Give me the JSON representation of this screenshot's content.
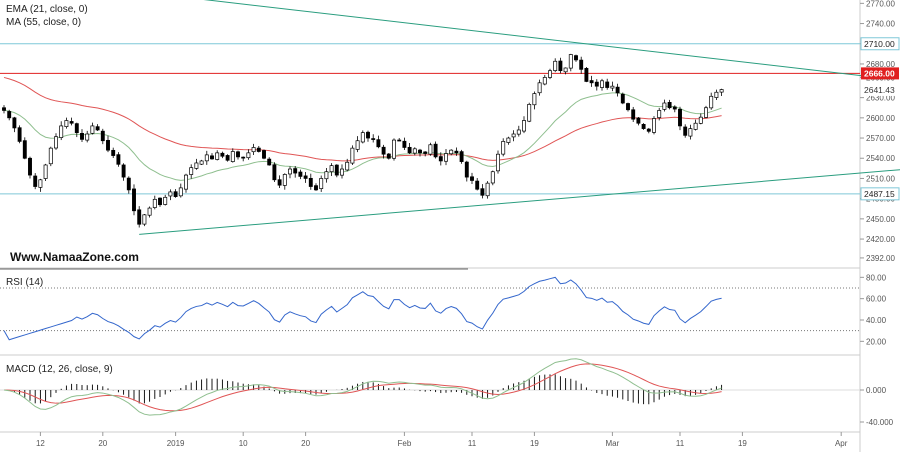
{
  "chart_data": [
    {
      "type": "candlestick",
      "title": "",
      "indicators": [
        "EMA (21, close, 0)",
        "MA (55, close, 0)"
      ],
      "watermark": "Www.NamaaZone.com",
      "ylim": [
        2380,
        2772
      ],
      "y_ticks": [
        2392,
        2420,
        2450,
        2480,
        2510,
        2540,
        2570,
        2600,
        2630,
        2660,
        2680,
        2710,
        2740,
        2770
      ],
      "y_tick_labels": [
        "2392.00",
        "2420.00",
        "2450.00",
        "2480.00",
        "2510.00",
        "2540.00",
        "2570.00",
        "2600.00",
        "2630.00",
        "2660.00",
        "2680.00",
        "2710.00",
        "2740.00",
        "2770.00"
      ],
      "tagged_levels": [
        {
          "value": 2710,
          "label": "2710.00",
          "color": "#7fc8d8",
          "style": "boxed"
        },
        {
          "value": 2666,
          "label": "2666.00",
          "color": "#e02020",
          "style": "filled"
        },
        {
          "value": 2641.43,
          "label": "2641.43",
          "color": "#333333",
          "style": "plain"
        },
        {
          "value": 2487.15,
          "label": "2487.15",
          "color": "#7fc8d8",
          "style": "boxed"
        }
      ],
      "trendlines": [
        {
          "name": "upper",
          "color": "#2a9d7f",
          "from": {
            "bar": 28,
            "y": 2785
          },
          "to": {
            "bar": 170,
            "y": 2658
          }
        },
        {
          "name": "lower",
          "color": "#2a9d7f",
          "from": {
            "bar": 26,
            "y": 2427
          },
          "to": {
            "bar": 183,
            "y": 2530
          }
        }
      ],
      "series_colors": {
        "ema": "#8fbf8f",
        "ma": "#e05555",
        "candle_up": "#ffffff",
        "candle_down": "#000000"
      },
      "closes": [
        2611,
        2600,
        2585,
        2565,
        2540,
        2515,
        2498,
        2508,
        2530,
        2555,
        2572,
        2588,
        2596,
        2592,
        2578,
        2568,
        2576,
        2588,
        2582,
        2566,
        2552,
        2544,
        2531,
        2512,
        2493,
        2462,
        2442,
        2456,
        2466,
        2479,
        2471,
        2482,
        2490,
        2483,
        2496,
        2515,
        2526,
        2533,
        2536,
        2545,
        2539,
        2548,
        2543,
        2537,
        2550,
        2542,
        2541,
        2548,
        2556,
        2550,
        2540,
        2530,
        2508,
        2500,
        2516,
        2524,
        2518,
        2513,
        2510,
        2498,
        2493,
        2510,
        2520,
        2529,
        2515,
        2524,
        2534,
        2555,
        2566,
        2578,
        2570,
        2568,
        2557,
        2546,
        2540,
        2567,
        2567,
        2556,
        2548,
        2554,
        2548,
        2547,
        2560,
        2542,
        2536,
        2547,
        2552,
        2548,
        2535,
        2512,
        2507,
        2494,
        2485,
        2503,
        2520,
        2546,
        2565,
        2570,
        2576,
        2582,
        2596,
        2620,
        2636,
        2652,
        2660,
        2670,
        2684,
        2670,
        2674,
        2694,
        2686,
        2672,
        2654,
        2652,
        2647,
        2655,
        2645,
        2647,
        2637,
        2622,
        2612,
        2598,
        2592,
        2584,
        2580,
        2599,
        2611,
        2622,
        2615,
        2613,
        2588,
        2574,
        2584,
        2592,
        2601,
        2615,
        2632,
        2638,
        2642
      ]
    },
    {
      "type": "line",
      "title": "RSI (14)",
      "ylim": [
        10,
        85
      ],
      "y_ticks": [
        20,
        40,
        60,
        80
      ],
      "y_tick_labels": [
        "20.00",
        "40.00",
        "60.00",
        "80.00"
      ],
      "levels": [
        70,
        30
      ],
      "series": [
        {
          "name": "RSI",
          "color": "#3366cc"
        }
      ]
    },
    {
      "type": "line",
      "title": "MACD (12, 26, close, 9)",
      "ylim": [
        -50,
        40
      ],
      "y_ticks": [
        0,
        -40
      ],
      "y_tick_labels": [
        "0.000",
        "-40.000"
      ],
      "series": [
        {
          "name": "MACD",
          "color": "#8fbf8f"
        },
        {
          "name": "Signal",
          "color": "#e05555"
        },
        {
          "name": "Histogram",
          "color": "#000000"
        }
      ]
    }
  ],
  "x_axis": {
    "tick_labels": [
      {
        "bar": 7,
        "label": "12"
      },
      {
        "bar": 19,
        "label": "20"
      },
      {
        "bar": 33,
        "label": "2019"
      },
      {
        "bar": 46,
        "label": "10"
      },
      {
        "bar": 58,
        "label": "20"
      },
      {
        "bar": 77,
        "label": "Feb"
      },
      {
        "bar": 90,
        "label": "11"
      },
      {
        "bar": 102,
        "label": "19"
      },
      {
        "bar": 117,
        "label": "Mar"
      },
      {
        "bar": 130,
        "label": "11"
      },
      {
        "bar": 142,
        "label": "19"
      },
      {
        "bar": 161,
        "label": "Apr"
      }
    ]
  }
}
